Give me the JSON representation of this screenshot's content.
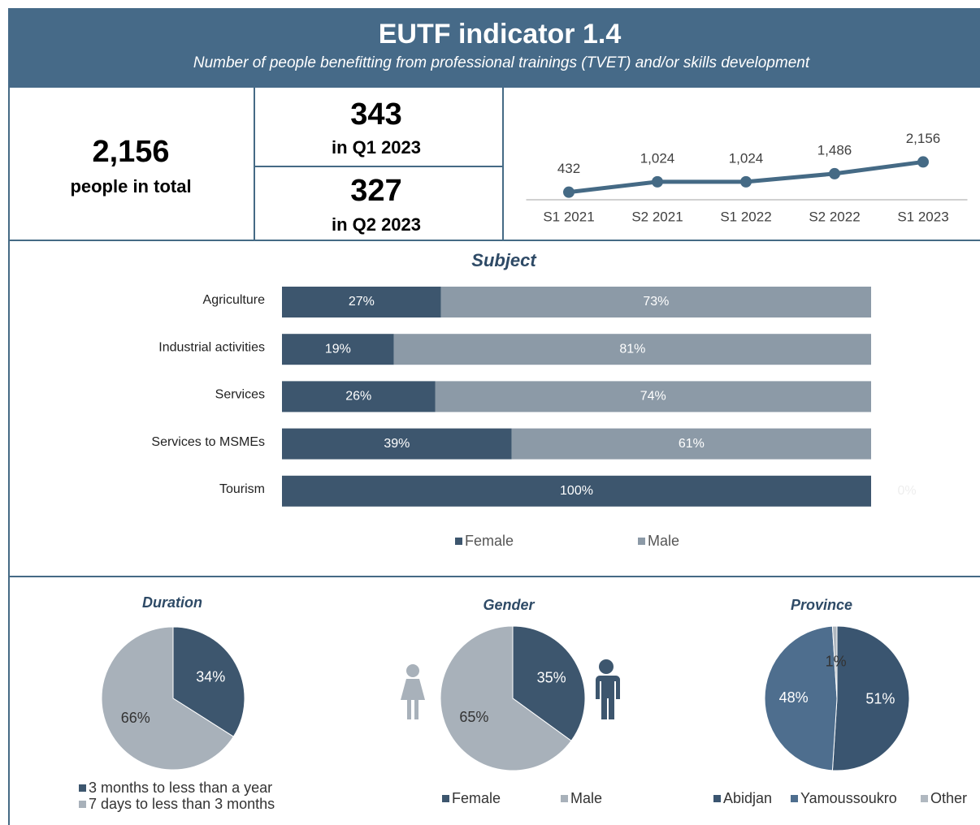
{
  "header": {
    "title": "EUTF indicator 1.4",
    "subtitle": "Number of people benefitting from professional trainings (TVET) and/or skills development"
  },
  "kpis": {
    "total": {
      "value": "2,156",
      "label": "people in total"
    },
    "quarters": [
      {
        "value": "343",
        "label": "in Q1 2023"
      },
      {
        "value": "327",
        "label": "in Q2 2023"
      }
    ]
  },
  "chart_data": [
    {
      "type": "line",
      "categories": [
        "S1 2021",
        "S2 2021",
        "S1 2022",
        "S2 2022",
        "S1 2023"
      ],
      "values": [
        432,
        1024,
        1024,
        1486,
        2156
      ],
      "value_labels": [
        "432",
        "1,024",
        "1,024",
        "1,486",
        "2,156"
      ],
      "color": "#456a85",
      "ylim": [
        0,
        2500
      ]
    },
    {
      "type": "bar",
      "stacked": true,
      "orientation": "horizontal",
      "title": "Subject",
      "categories": [
        "Agriculture",
        "Industrial activities",
        "Services",
        "Services to MSMEs",
        "Tourism"
      ],
      "series": [
        {
          "name": "Female",
          "color": "#3d566e",
          "values": [
            27,
            19,
            26,
            39,
            100
          ],
          "value_labels": [
            "27%",
            "19%",
            "26%",
            "39%",
            "100%"
          ]
        },
        {
          "name": "Male",
          "color": "#8c9aa7",
          "values": [
            73,
            81,
            74,
            61,
            0
          ],
          "value_labels": [
            "73%",
            "81%",
            "74%",
            "61%",
            "0%"
          ]
        }
      ],
      "xlim": [
        0,
        100
      ]
    },
    {
      "type": "pie",
      "title": "Duration",
      "categories": [
        "3 months to less than a year",
        "7 days to less than 3 months"
      ],
      "values": [
        34,
        66
      ],
      "value_labels": [
        "34%",
        "66%"
      ],
      "colors": [
        "#3d566e",
        "#a8b1ba"
      ]
    },
    {
      "type": "pie",
      "title": "Gender",
      "categories": [
        "Female",
        "Male"
      ],
      "values": [
        35,
        65
      ],
      "value_labels": [
        "35%",
        "65%"
      ],
      "colors": [
        "#3d566e",
        "#a8b1ba"
      ]
    },
    {
      "type": "pie",
      "title": "Province",
      "categories": [
        "Abidjan",
        "Yamoussoukro",
        "Other"
      ],
      "values": [
        51,
        48,
        1
      ],
      "value_labels": [
        "51%",
        "48%",
        "1%"
      ],
      "colors": [
        "#3a5570",
        "#4e6e8e",
        "#b0b8c0"
      ]
    }
  ]
}
